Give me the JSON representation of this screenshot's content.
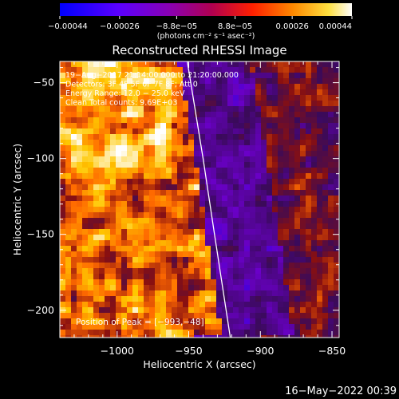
{
  "chart_data": {
    "type": "heatmap",
    "title": "Reconstructed RHESSI Image",
    "xlabel": "Heliocentric X (arcsec)",
    "ylabel": "Heliocentric Y (arcsec)",
    "xlim": [
      -1040,
      -845
    ],
    "ylim": [
      -218,
      -36
    ],
    "xticks": [
      -1000,
      -950,
      -900,
      -850
    ],
    "xtick_labels": [
      "−1000",
      "−950",
      "−900",
      "−850"
    ],
    "yticks": [
      -50,
      -100,
      -150,
      -200
    ],
    "ytick_labels": [
      "−50",
      "−100",
      "−150",
      "−200"
    ],
    "colorbar": {
      "range": [
        -0.00044,
        0.00044
      ],
      "ticks": [
        -0.00044,
        -0.00026,
        -8.8e-05,
        8.8e-05,
        0.00026,
        0.00044
      ],
      "tick_labels": [
        "−0.00044",
        "−0.00026",
        "−8.8e−05",
        "8.8e−05",
        "0.00026",
        "0.00044"
      ],
      "units": "(photons cm⁻² s⁻¹ asec⁻²)"
    },
    "annotations": [
      "19−Aug−2017 21:14:00.000 to 21:20:00.000",
      "Detectors: 3F 4F 5F 6F 7F 8F; Att 0",
      "Energy Range: 12.0 − 25.0 keV",
      "Clean    Total counts: 9.69E+03"
    ],
    "peak_label": "Position of Peak = [−993,−48]",
    "peak": [
      -993,
      -48
    ],
    "limb_curve": [
      [
        -951,
        -36
      ],
      [
        -940,
        -100
      ],
      [
        -932,
        -150
      ],
      [
        -921,
        -218
      ]
    ],
    "grid": false,
    "colors": {
      "background": "#000000",
      "foreground": "#ffffff",
      "colormap": [
        "#0000ff",
        "#6a00c8",
        "#3a0a5a",
        "#8a1010",
        "#ff6a00",
        "#ffc800",
        "#ffffff"
      ]
    }
  },
  "footer": {
    "timestamp": "16−May−2022 00:39"
  }
}
